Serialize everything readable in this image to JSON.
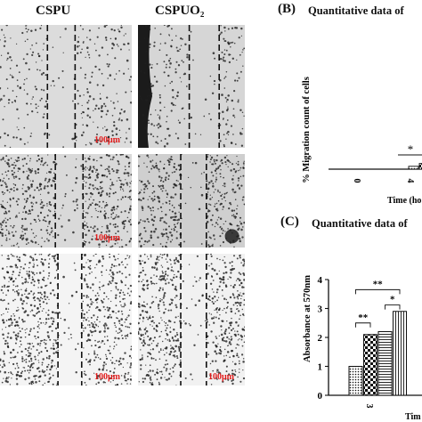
{
  "columns": [
    "CSPU",
    "CSPUO₂"
  ],
  "scale_bar_label": "100μm",
  "panel_b": {
    "letter": "(B)",
    "title": "Quantitative data of",
    "ylabel": "% Migration count of cells",
    "xlabel": "Time (ho",
    "x_ticks": [
      "0",
      "4"
    ],
    "significance": [
      "*"
    ]
  },
  "panel_c": {
    "letter": "(C)",
    "title": "Quantitative data of",
    "ylabel": "Absorbance at 570nm",
    "xlabel": "Tim",
    "y_ticks": [
      "0",
      "1",
      "2",
      "3",
      "4"
    ],
    "x_ticks": [
      "3"
    ],
    "significance": [
      "**",
      "**",
      "*"
    ]
  },
  "chart_data": [
    {
      "type": "bar",
      "panel": "B",
      "title": "Quantitative data of",
      "xlabel": "Time (ho",
      "ylabel": "% Migration count of cells",
      "categories": [
        "0",
        "4"
      ],
      "series": [
        {
          "values": [
            0,
            1.0
          ]
        },
        {
          "values": [
            0,
            2.0
          ]
        }
      ]
    },
    {
      "type": "bar",
      "panel": "C",
      "title": "Quantitative data of",
      "xlabel": "Tim",
      "ylabel": "Absorbance at 570nm",
      "ylim": [
        0,
        4
      ],
      "categories": [
        "3"
      ],
      "series": [
        {
          "values": [
            1.0
          ]
        },
        {
          "values": [
            2.1
          ]
        },
        {
          "values": [
            2.2
          ]
        },
        {
          "values": [
            2.9
          ]
        }
      ]
    }
  ]
}
